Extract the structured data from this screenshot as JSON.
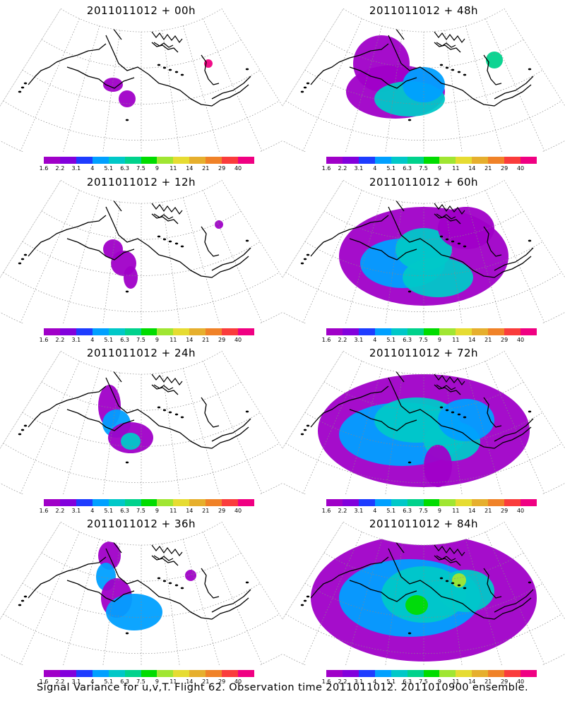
{
  "figure": {
    "caption": "Signal Variance for u,v,T. Flight 62. Observation time 2011011012. 2011010900 ensemble."
  },
  "colorbar": {
    "labels": [
      "1.6",
      "2.2",
      "3.1",
      "4",
      "5.1",
      "6.3",
      "7.5",
      "9",
      "11",
      "14",
      "21",
      "29",
      "40"
    ],
    "colors": [
      "#a000c8",
      "#8200dc",
      "#1e3cff",
      "#00a0ff",
      "#00c8c8",
      "#00d28c",
      "#00dc00",
      "#a0e632",
      "#e6dc32",
      "#e6af2d",
      "#f08228",
      "#fa3c3c",
      "#f00082"
    ]
  },
  "panels": [
    {
      "id": "p00",
      "title": "2011011012 + 00h",
      "lead_hours": 0
    },
    {
      "id": "p48",
      "title": "2011011012 + 48h",
      "lead_hours": 48
    },
    {
      "id": "p12",
      "title": "2011011012 + 12h",
      "lead_hours": 12
    },
    {
      "id": "p60",
      "title": "2011011012 + 60h",
      "lead_hours": 60
    },
    {
      "id": "p24",
      "title": "2011011012 + 24h",
      "lead_hours": 24
    },
    {
      "id": "p72",
      "title": "2011011012 + 72h",
      "lead_hours": 72
    },
    {
      "id": "p36",
      "title": "2011011012 + 36h",
      "lead_hours": 36
    },
    {
      "id": "p84",
      "title": "2011011012 + 84h",
      "lead_hours": 84
    }
  ]
}
